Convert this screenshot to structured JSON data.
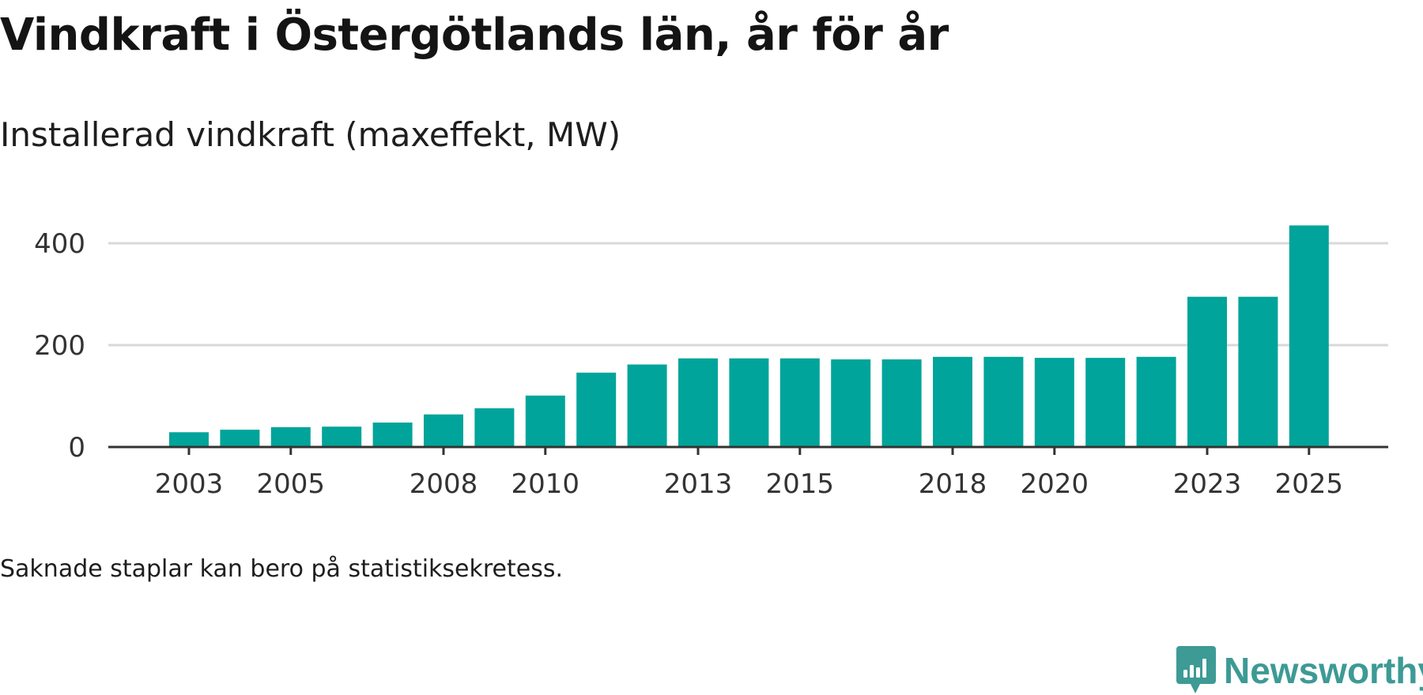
{
  "colors": {
    "bar": "#00a49a",
    "grid": "#d9d9d9",
    "axis": "#333333",
    "tick_text": "#333333",
    "brand": "#3d9a95"
  },
  "chart_data": {
    "type": "bar",
    "title": "Vindkraft i Östergötlands län, år för år",
    "subtitle": "Installerad vindkraft (maxeffekt, MW)",
    "xlabel": "",
    "ylabel": "",
    "x": [
      2003,
      2004,
      2005,
      2006,
      2007,
      2008,
      2009,
      2010,
      2011,
      2012,
      2013,
      2014,
      2015,
      2016,
      2017,
      2018,
      2019,
      2020,
      2021,
      2022,
      2023,
      2024,
      2025
    ],
    "values": [
      29,
      34,
      39,
      40,
      48,
      64,
      76,
      101,
      146,
      162,
      174,
      174,
      174,
      172,
      172,
      177,
      177,
      175,
      175,
      177,
      295,
      295,
      435
    ],
    "xticks": [
      "2003",
      "2005",
      "2008",
      "2010",
      "2013",
      "2015",
      "2018",
      "2020",
      "2023",
      "2025"
    ],
    "yticks": [
      0,
      200,
      400
    ],
    "ylim": [
      0,
      450
    ],
    "grid": true,
    "note": "Saknade staplar kan bero på statistiksekretess."
  },
  "brand": {
    "name": "Newsworthy",
    "icon": "newsworthy-logo-icon"
  }
}
